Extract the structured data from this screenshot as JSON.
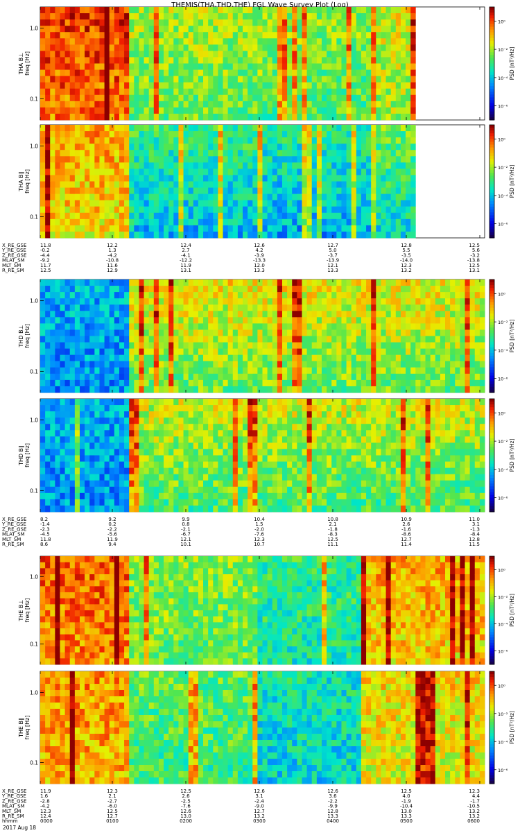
{
  "title": "THEMIS(THA,THD,THE) FGL Wave Survey Plot (Log)",
  "y_ticks": [
    "1.0",
    "0.1"
  ],
  "y_tick_values": [
    1.0,
    0.1
  ],
  "freq_range_hz": [
    0.05,
    2.0
  ],
  "freq_axis_label": "freq [Hz]",
  "colorbar": {
    "label": "PSD [nT²/Hz]",
    "scale": "log",
    "tick_labels": [
      "10⁰",
      "10⁻²",
      "10⁻⁴",
      "10⁻⁶"
    ],
    "tick_exponents": [
      0,
      -2,
      -4,
      -6
    ],
    "range_exponents": [
      -7,
      1
    ]
  },
  "x_tick_labels": [
    "0000",
    "0100",
    "0200",
    "0300",
    "0400",
    "0500",
    "0600"
  ],
  "date": "2017 Aug 18",
  "time_label": "hhmm",
  "chart_data": [
    {
      "type": "heatmap",
      "title": "THEMIS(THA,THD,THE) FGL Wave Survey Plot (Log)",
      "panels": [
        {
          "ylabel": "THA B⊥",
          "data_end_fraction": 0.84
        },
        {
          "ylabel": "THA B∥",
          "data_end_fraction": 0.84
        }
      ],
      "orbit": {
        "labels": [
          "X_RE_GSE",
          "Y_RE_GSE",
          "Z_RE_GSE",
          "MLAT_SM",
          "MLT_SM",
          "R_RE_SM"
        ],
        "rows": [
          [
            "11.8",
            "12.2",
            "12.4",
            "12.6",
            "12.7",
            "12.8",
            "12.5"
          ],
          [
            "-0.2",
            "1.3",
            "2.7",
            "4.2",
            "5.0",
            "5.5",
            "5.6"
          ],
          [
            "-4.4",
            "-4.2",
            "-4.1",
            "-3.9",
            "-3.7",
            "-3.5",
            "-3.2"
          ],
          [
            "-9.2",
            "-10.8",
            "-12.2",
            "-13.3",
            "-13.9",
            "-14.0",
            "-13.8"
          ],
          [
            "11.7",
            "11.6",
            "11.9",
            "12.0",
            "12.1",
            "12.3",
            "12.5"
          ],
          [
            "12.5",
            "12.9",
            "13.1",
            "13.3",
            "13.3",
            "13.2",
            "13.1"
          ]
        ]
      }
    },
    {
      "type": "heatmap",
      "panels": [
        {
          "ylabel": "THD B⊥",
          "data_end_fraction": 1.0
        },
        {
          "ylabel": "THD B∥",
          "data_end_fraction": 1.0
        }
      ],
      "orbit": {
        "labels": [
          "X_RE_GSE",
          "Y_RE_GSE",
          "Z_RE_GSE",
          "MLAT_SM",
          "MLT_SM",
          "R_RE_SM"
        ],
        "rows": [
          [
            "8.2",
            "9.2",
            "9.9",
            "10.4",
            "10.8",
            "10.9",
            "11.0"
          ],
          [
            "-1.4",
            "0.2",
            "0.8",
            "1.5",
            "2.1",
            "2.6",
            "3.1"
          ],
          [
            "-2.3",
            "-2.2",
            "-2.1",
            "-2.0",
            "-1.8",
            "-1.6",
            "-1.3"
          ],
          [
            "-4.5",
            "-5.6",
            "-6.7",
            "-7.6",
            "-8.3",
            "-8.6",
            "-8.4"
          ],
          [
            "11.8",
            "11.9",
            "12.1",
            "12.3",
            "12.5",
            "12.7",
            "12.8"
          ],
          [
            "8.6",
            "9.4",
            "10.1",
            "10.7",
            "11.1",
            "11.4",
            "11.5"
          ]
        ]
      }
    },
    {
      "type": "heatmap",
      "panels": [
        {
          "ylabel": "THE B⊥",
          "data_end_fraction": 1.0
        },
        {
          "ylabel": "THE B∥",
          "data_end_fraction": 1.0
        }
      ],
      "orbit": {
        "labels": [
          "X_RE_GSE",
          "Y_RE_GSE",
          "Z_RE_GSE",
          "MLAT_SM",
          "MLT_SM",
          "R_RE_SM",
          "hhmm"
        ],
        "rows": [
          [
            "11.9",
            "12.3",
            "12.5",
            "12.6",
            "12.6",
            "12.5",
            "12.3"
          ],
          [
            "1.6",
            "2.1",
            "2.6",
            "3.1",
            "3.6",
            "4.0",
            "4.4"
          ],
          [
            "-2.8",
            "-2.7",
            "-2.5",
            "-2.4",
            "-2.2",
            "-1.9",
            "-1.7"
          ],
          [
            "-4.2",
            "-6.0",
            "-7.6",
            "-9.0",
            "-9.9",
            "-10.4",
            "-10.5"
          ],
          [
            "12.3",
            "12.5",
            "12.6",
            "12.7",
            "12.8",
            "13.0",
            "13.2"
          ],
          [
            "12.4",
            "12.7",
            "13.0",
            "13.2",
            "13.3",
            "13.3",
            "13.2"
          ],
          [
            "0000",
            "0100",
            "0200",
            "0300",
            "0400",
            "0500",
            "0600"
          ]
        ]
      }
    }
  ]
}
